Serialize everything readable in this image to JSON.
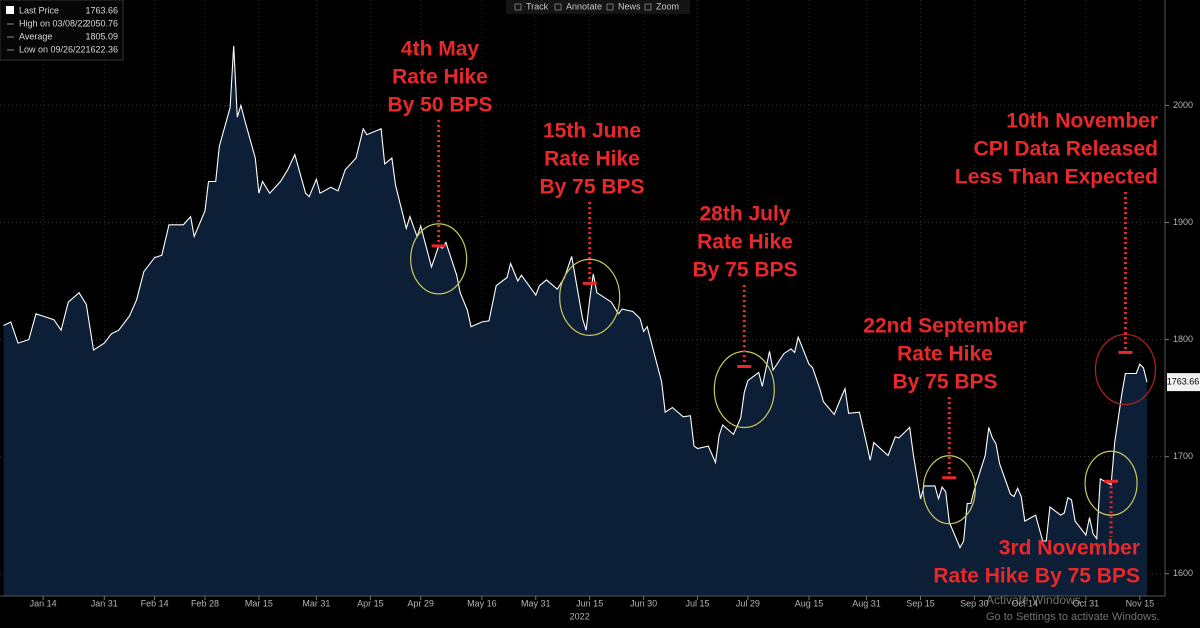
{
  "chart_data": {
    "type": "area",
    "x": [
      "2022-01-03",
      "2022-01-05",
      "2022-01-07",
      "2022-01-10",
      "2022-01-12",
      "2022-01-14",
      "2022-01-17",
      "2022-01-19",
      "2022-01-21",
      "2022-01-24",
      "2022-01-26",
      "2022-01-28",
      "2022-01-31",
      "2022-02-02",
      "2022-02-04",
      "2022-02-07",
      "2022-02-09",
      "2022-02-11",
      "2022-02-14",
      "2022-02-16",
      "2022-02-18",
      "2022-02-22",
      "2022-02-24",
      "2022-02-25",
      "2022-02-28",
      "2022-03-01",
      "2022-03-03",
      "2022-03-04",
      "2022-03-07",
      "2022-03-08",
      "2022-03-09",
      "2022-03-10",
      "2022-03-11",
      "2022-03-14",
      "2022-03-15",
      "2022-03-16",
      "2022-03-18",
      "2022-03-21",
      "2022-03-23",
      "2022-03-25",
      "2022-03-28",
      "2022-03-29",
      "2022-03-31",
      "2022-04-01",
      "2022-04-04",
      "2022-04-06",
      "2022-04-08",
      "2022-04-11",
      "2022-04-13",
      "2022-04-14",
      "2022-04-18",
      "2022-04-19",
      "2022-04-21",
      "2022-04-22",
      "2022-04-25",
      "2022-04-26",
      "2022-04-28",
      "2022-04-29",
      "2022-05-02",
      "2022-05-04",
      "2022-05-05",
      "2022-05-06",
      "2022-05-09",
      "2022-05-10",
      "2022-05-12",
      "2022-05-13",
      "2022-05-16",
      "2022-05-18",
      "2022-05-20",
      "2022-05-23",
      "2022-05-24",
      "2022-05-26",
      "2022-05-27",
      "2022-05-31",
      "2022-06-01",
      "2022-06-03",
      "2022-06-06",
      "2022-06-08",
      "2022-06-10",
      "2022-06-13",
      "2022-06-14",
      "2022-06-15",
      "2022-06-16",
      "2022-06-17",
      "2022-06-21",
      "2022-06-23",
      "2022-06-24",
      "2022-06-27",
      "2022-06-29",
      "2022-06-30",
      "2022-07-01",
      "2022-07-05",
      "2022-07-06",
      "2022-07-08",
      "2022-07-11",
      "2022-07-13",
      "2022-07-14",
      "2022-07-15",
      "2022-07-18",
      "2022-07-20",
      "2022-07-21",
      "2022-07-22",
      "2022-07-25",
      "2022-07-27",
      "2022-07-28",
      "2022-07-29",
      "2022-08-01",
      "2022-08-02",
      "2022-08-04",
      "2022-08-05",
      "2022-08-08",
      "2022-08-10",
      "2022-08-11",
      "2022-08-12",
      "2022-08-15",
      "2022-08-16",
      "2022-08-18",
      "2022-08-19",
      "2022-08-22",
      "2022-08-24",
      "2022-08-25",
      "2022-08-26",
      "2022-08-29",
      "2022-08-31",
      "2022-09-01",
      "2022-09-02",
      "2022-09-06",
      "2022-09-08",
      "2022-09-09",
      "2022-09-12",
      "2022-09-13",
      "2022-09-15",
      "2022-09-16",
      "2022-09-19",
      "2022-09-20",
      "2022-09-21",
      "2022-09-22",
      "2022-09-23",
      "2022-09-26",
      "2022-09-27",
      "2022-09-28",
      "2022-09-29",
      "2022-09-30",
      "2022-10-03",
      "2022-10-04",
      "2022-10-05",
      "2022-10-06",
      "2022-10-07",
      "2022-10-10",
      "2022-10-11",
      "2022-10-12",
      "2022-10-13",
      "2022-10-14",
      "2022-10-17",
      "2022-10-19",
      "2022-10-20",
      "2022-10-21",
      "2022-10-24",
      "2022-10-25",
      "2022-10-26",
      "2022-10-27",
      "2022-10-28",
      "2022-10-31",
      "2022-11-01",
      "2022-11-02",
      "2022-11-03",
      "2022-11-04",
      "2022-11-07",
      "2022-11-08",
      "2022-11-10",
      "2022-11-11",
      "2022-11-14",
      "2022-11-15",
      "2022-11-16",
      "2022-11-17"
    ],
    "series": [
      {
        "name": "Last Price",
        "color": "#ffffff",
        "values": [
          1812,
          1815,
          1797,
          1800,
          1822,
          1820,
          1817,
          1808,
          1832,
          1840,
          1830,
          1791,
          1797,
          1805,
          1808,
          1820,
          1834,
          1858,
          1870,
          1872,
          1898,
          1898,
          1905,
          1888,
          1910,
          1935,
          1935,
          1965,
          1998,
          2050.76,
          1990,
          2000,
          1988,
          1955,
          1925,
          1935,
          1925,
          1935,
          1945,
          1958,
          1925,
          1922,
          1937,
          1925,
          1930,
          1927,
          1945,
          1955,
          1980,
          1975,
          1980,
          1950,
          1955,
          1932,
          1895,
          1905,
          1888,
          1897,
          1862,
          1880,
          1878,
          1883,
          1855,
          1840,
          1825,
          1811,
          1815,
          1816,
          1846,
          1853,
          1865,
          1850,
          1855,
          1838,
          1846,
          1851,
          1843,
          1853,
          1871,
          1818,
          1808,
          1834,
          1856,
          1840,
          1832,
          1822,
          1826,
          1824,
          1818,
          1807,
          1811,
          1764,
          1738,
          1742,
          1734,
          1735,
          1709,
          1707,
          1709,
          1695,
          1718,
          1727,
          1719,
          1733,
          1755,
          1765,
          1772,
          1760,
          1790,
          1774,
          1788,
          1792,
          1789,
          1802,
          1779,
          1776,
          1758,
          1747,
          1736,
          1751,
          1758,
          1737,
          1738,
          1711,
          1697,
          1712,
          1701,
          1717,
          1716,
          1725,
          1702,
          1664,
          1675,
          1675,
          1664,
          1674,
          1670,
          1644,
          1622.36,
          1628,
          1660,
          1660,
          1672,
          1701,
          1725,
          1716,
          1711,
          1694,
          1668,
          1666,
          1673,
          1666,
          1645,
          1650,
          1628,
          1628,
          1657,
          1650,
          1652,
          1665,
          1663,
          1645,
          1633,
          1648,
          1634,
          1630,
          1681,
          1676,
          1712,
          1754,
          1771,
          1771,
          1779,
          1776,
          1763.66
        ]
      }
    ],
    "fill_color": "#0c1f36",
    "xlim": [
      "2022-01-02",
      "2022-11-22"
    ],
    "ylim": [
      1581,
      2090
    ],
    "xticks": [
      {
        "value": "2022-01-14",
        "label": "Jan 14"
      },
      {
        "value": "2022-01-31",
        "label": "Jan 31"
      },
      {
        "value": "2022-02-14",
        "label": "Feb 14"
      },
      {
        "value": "2022-02-28",
        "label": "Feb 28"
      },
      {
        "value": "2022-03-15",
        "label": "Mar 15"
      },
      {
        "value": "2022-03-31",
        "label": "Mar 31"
      },
      {
        "value": "2022-04-15",
        "label": "Apr 15"
      },
      {
        "value": "2022-04-29",
        "label": "Apr 29"
      },
      {
        "value": "2022-05-16",
        "label": "May 16"
      },
      {
        "value": "2022-05-31",
        "label": "May 31"
      },
      {
        "value": "2022-06-15",
        "label": "Jun 15"
      },
      {
        "value": "2022-06-30",
        "label": "Jun 30"
      },
      {
        "value": "2022-07-15",
        "label": "Jul 15"
      },
      {
        "value": "2022-07-29",
        "label": "Jul 29"
      },
      {
        "value": "2022-08-15",
        "label": "Aug 15"
      },
      {
        "value": "2022-08-31",
        "label": "Aug 31"
      },
      {
        "value": "2022-09-15",
        "label": "Sep 15"
      },
      {
        "value": "2022-09-30",
        "label": "Sep 30"
      },
      {
        "value": "2022-10-14",
        "label": "Oct 14"
      },
      {
        "value": "2022-10-31",
        "label": "Oct 31"
      },
      {
        "value": "2022-11-15",
        "label": "Nov 15"
      }
    ],
    "year_label": "2022",
    "yticks": [
      1600,
      1700,
      1800,
      1900,
      2000
    ],
    "grid": true,
    "legend": [
      {
        "label": "High on 03/08/22",
        "value": 2050.76
      },
      {
        "label": "Average",
        "value": 1805.09
      },
      {
        "label": "Low on 09/26/22",
        "value": 1622.36
      }
    ],
    "annotation_color": "#e8282b",
    "annotations": [
      {
        "lines": [
          "4th May",
          "Rate Hike",
          "By 50 BPS"
        ],
        "x": "2022-05-04",
        "y": 1880,
        "circle_color": "#c9c95c"
      },
      {
        "lines": [
          "15th June",
          "Rate Hike",
          "By 75 BPS"
        ],
        "x": "2022-06-15",
        "y": 1848,
        "circle_color": "#c9c95c"
      },
      {
        "lines": [
          "28th July",
          "Rate Hike",
          "By 75 BPS"
        ],
        "x": "2022-07-28",
        "y": 1777,
        "circle_color": "#c9c95c"
      },
      {
        "lines": [
          "22nd September",
          "Rate Hike",
          "By 75 BPS"
        ],
        "x": "2022-09-23",
        "y": 1682,
        "circle_color": "#c9c95c"
      },
      {
        "lines": [
          "3rd November",
          "Rate Hike By 75 BPS"
        ],
        "x": "2022-11-07",
        "y": 1679,
        "circle_color": "#c9c95c"
      },
      {
        "lines": [
          "10th November",
          "CPI Data Released",
          "Less Than Expected"
        ],
        "x": "2022-11-11",
        "y": 1789,
        "circle_color": "#b52222"
      }
    ]
  },
  "toolbar": [
    "Track",
    "Annotate",
    "News",
    "Zoom"
  ],
  "watermark": [
    "Activate Windows",
    "Go to Settings to activate Windows."
  ]
}
